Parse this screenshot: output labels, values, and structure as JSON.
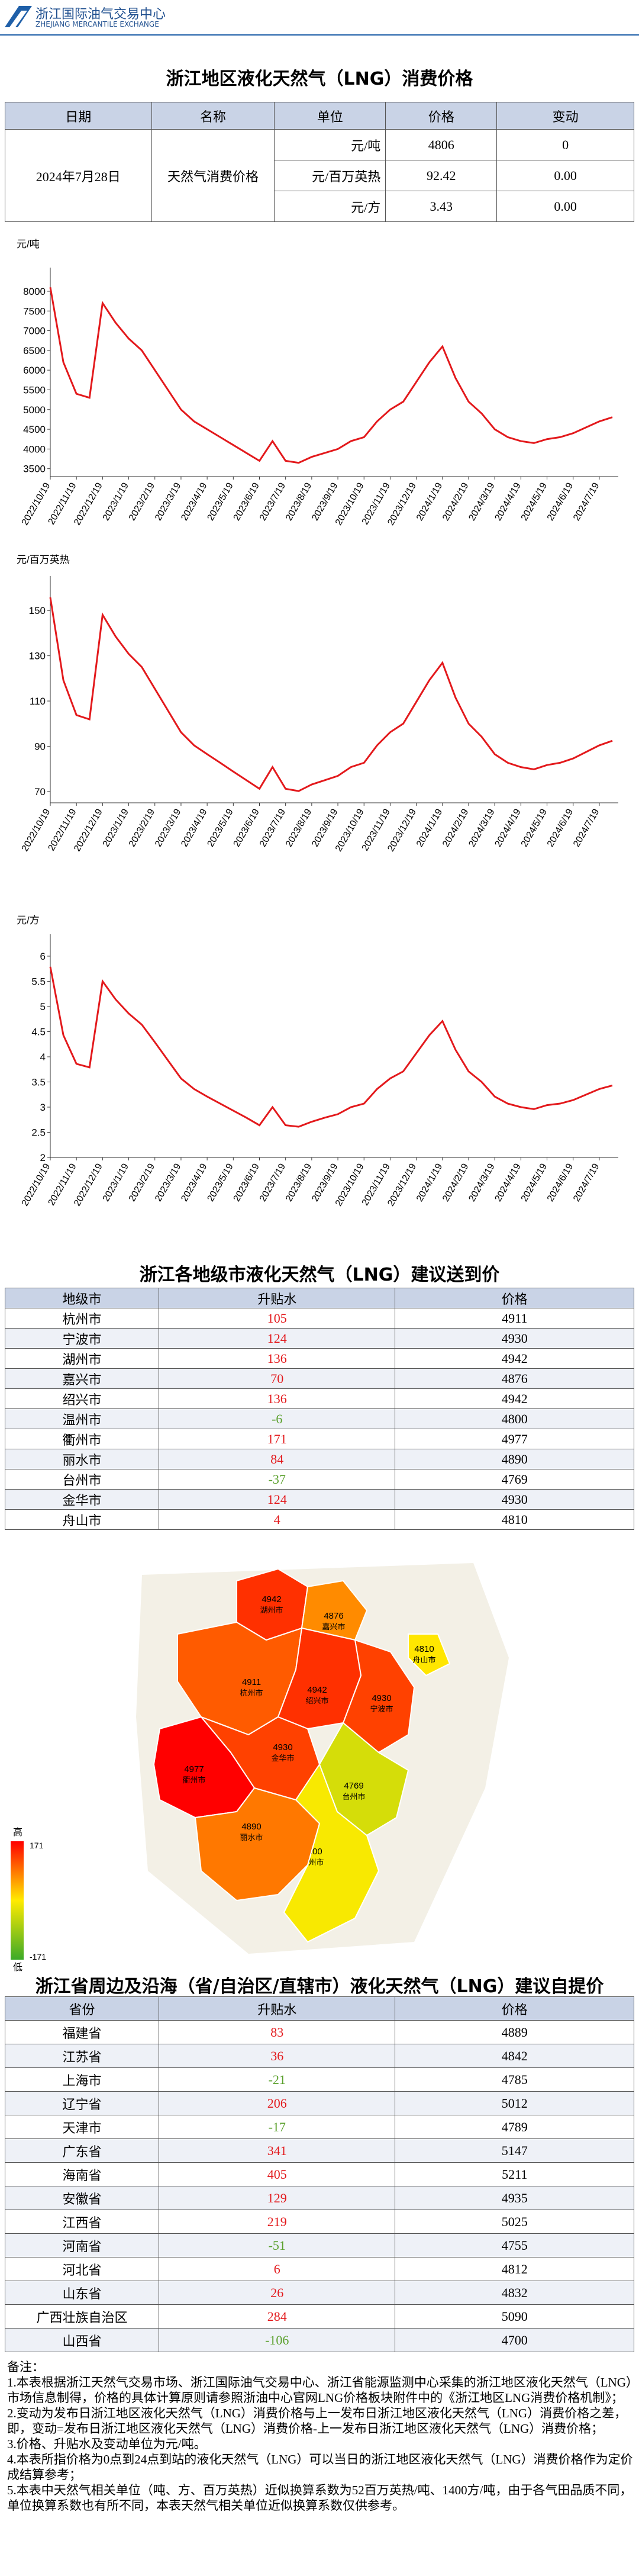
{
  "header": {
    "org": "浙江国际油气交易中心",
    "org_en": "ZHEJIANG MERCANTILE EXCHANGE"
  },
  "section1": {
    "title": "浙江地区液化天然气（LNG）消费价格",
    "columns": [
      "日期",
      "名称",
      "单位",
      "价格",
      "变动"
    ],
    "date": "2024年7月28日",
    "name": "天然气消费价格",
    "rows": [
      [
        "元/吨",
        4806,
        0
      ],
      [
        "元/百万英热",
        92.42,
        "0.00"
      ],
      [
        "元/方",
        3.43,
        "0.00"
      ]
    ]
  },
  "chart_data": [
    {
      "type": "line",
      "y_label": "元/吨",
      "color": "#e3191c",
      "ylim": [
        3300,
        8300
      ],
      "yticks": [
        3500,
        4000,
        4500,
        5000,
        5500,
        6000,
        6500,
        7000,
        7500,
        8000
      ],
      "categories": [
        "2022/10/19",
        null,
        "2022/11/19",
        null,
        "2022/12/19",
        null,
        "2023/1/19",
        null,
        "2023/2/19",
        null,
        "2023/3/19",
        null,
        "2023/4/19",
        null,
        "2023/5/19",
        null,
        "2023/6/19",
        null,
        "2023/7/19",
        null,
        "2023/8/19",
        null,
        "2023/9/19",
        null,
        "2023/10/19",
        null,
        "2023/11/19",
        null,
        "2023/12/19",
        null,
        "2024/1/19",
        null,
        "2024/2/19",
        null,
        "2024/3/19",
        null,
        "2024/4/19",
        null,
        "2024/5/19",
        null,
        "2024/6/19",
        null,
        "2024/7/19",
        null
      ],
      "values": [
        8100,
        6200,
        5400,
        5300,
        7700,
        7200,
        6800,
        6500,
        6000,
        5500,
        5000,
        4700,
        4500,
        4300,
        4100,
        3900,
        3700,
        4200,
        3700,
        3650,
        3800,
        3900,
        4000,
        4200,
        4300,
        4700,
        5000,
        5200,
        5700,
        6200,
        6600,
        5800,
        5200,
        4900,
        4500,
        4300,
        4200,
        4150,
        4250,
        4300,
        4400,
        4550,
        4700,
        4806
      ]
    },
    {
      "type": "line",
      "y_label": "元/百万英热",
      "color": "#e3191c",
      "ylim": [
        65,
        160
      ],
      "yticks": [
        70,
        90,
        110,
        130,
        150
      ],
      "categories": [
        "2022/10/19",
        null,
        "2022/11/19",
        null,
        "2022/12/19",
        null,
        "2023/1/19",
        null,
        "2023/2/19",
        null,
        "2023/3/19",
        null,
        "2023/4/19",
        null,
        "2023/5/19",
        null,
        "2023/6/19",
        null,
        "2023/7/19",
        null,
        "2023/8/19",
        null,
        "2023/9/19",
        null,
        "2023/10/19",
        null,
        "2023/11/19",
        null,
        "2023/12/19",
        null,
        "2024/1/19",
        null,
        "2024/2/19",
        null,
        "2024/3/19",
        null,
        "2024/4/19",
        null,
        "2024/5/19",
        null,
        "2024/6/19",
        null,
        "2024/7/19",
        null
      ],
      "values": [
        155.8,
        119.2,
        103.8,
        101.9,
        148.1,
        138.5,
        130.8,
        125,
        115.4,
        105.8,
        96.2,
        90.4,
        86.5,
        82.7,
        78.8,
        75,
        71.2,
        80.8,
        71.2,
        70.2,
        73.1,
        75,
        76.9,
        80.8,
        82.7,
        90.4,
        96.2,
        100,
        109.6,
        119.2,
        126.9,
        111.5,
        100,
        94.2,
        86.5,
        82.7,
        80.8,
        79.8,
        81.7,
        82.7,
        84.6,
        87.5,
        90.4,
        92.42
      ]
    },
    {
      "type": "line",
      "y_label": "元/方",
      "color": "#e3191c",
      "ylim": [
        2,
        6.2
      ],
      "yticks": [
        2,
        2.5,
        3,
        3.5,
        4,
        4.5,
        5,
        5.5,
        6
      ],
      "categories": [
        "2022/10/19",
        null,
        "2022/11/19",
        null,
        "2022/12/19",
        null,
        "2023/1/19",
        null,
        "2023/2/19",
        null,
        "2023/3/19",
        null,
        "2023/4/19",
        null,
        "2023/5/19",
        null,
        "2023/6/19",
        null,
        "2023/7/19",
        null,
        "2023/8/19",
        null,
        "2023/9/19",
        null,
        "2023/10/19",
        null,
        "2023/11/19",
        null,
        "2023/12/19",
        null,
        "2024/1/19",
        null,
        "2024/2/19",
        null,
        "2024/3/19",
        null,
        "2024/4/19",
        null,
        "2024/5/19",
        null,
        "2024/6/19",
        null,
        "2024/7/19",
        null
      ],
      "values": [
        5.79,
        4.43,
        3.86,
        3.79,
        5.5,
        5.14,
        4.86,
        4.64,
        4.29,
        3.93,
        3.57,
        3.36,
        3.21,
        3.07,
        2.93,
        2.79,
        2.64,
        3,
        2.64,
        2.61,
        2.71,
        2.79,
        2.86,
        3,
        3.07,
        3.36,
        3.57,
        3.71,
        4.07,
        4.43,
        4.71,
        4.14,
        3.71,
        3.5,
        3.21,
        3.07,
        3,
        2.96,
        3.04,
        3.07,
        3.14,
        3.25,
        3.36,
        3.43
      ]
    }
  ],
  "section2": {
    "title": "浙江各地级市液化天然气（LNG）建议送到价",
    "columns": [
      "地级市",
      "升贴水",
      "价格"
    ],
    "rows": [
      [
        "杭州市",
        105,
        4911
      ],
      [
        "宁波市",
        124,
        4930
      ],
      [
        "湖州市",
        136,
        4942
      ],
      [
        "嘉兴市",
        70,
        4876
      ],
      [
        "绍兴市",
        136,
        4942
      ],
      [
        "温州市",
        -6,
        4800
      ],
      [
        "衢州市",
        171,
        4977
      ],
      [
        "丽水市",
        84,
        4890
      ],
      [
        "台州市",
        -37,
        4769
      ],
      [
        "金华市",
        124,
        4930
      ],
      [
        "舟山市",
        4,
        4810
      ]
    ]
  },
  "map": {
    "legend": {
      "high": "高",
      "max": 171,
      "min": -171,
      "low": "低"
    }
  },
  "section3": {
    "title": "浙江省周边及沿海（省/自治区/直辖市）液化天然气（LNG）建议自提价",
    "columns": [
      "省份",
      "升贴水",
      "价格"
    ],
    "rows": [
      [
        "福建省",
        83,
        4889
      ],
      [
        "江苏省",
        36,
        4842
      ],
      [
        "上海市",
        -21,
        4785
      ],
      [
        "辽宁省",
        206,
        5012
      ],
      [
        "天津市",
        -17,
        4789
      ],
      [
        "广东省",
        341,
        5147
      ],
      [
        "海南省",
        405,
        5211
      ],
      [
        "安徽省",
        129,
        4935
      ],
      [
        "江西省",
        219,
        5025
      ],
      [
        "河南省",
        -51,
        4755
      ],
      [
        "河北省",
        6,
        4812
      ],
      [
        "山东省",
        26,
        4832
      ],
      [
        "广西壮族自治区",
        284,
        5090
      ],
      [
        "山西省",
        -106,
        4700
      ]
    ]
  },
  "notes": {
    "title": "备注：",
    "items": [
      "1.本表根据浙江天然气交易市场、浙江国际油气交易中心、浙江省能源监测中心采集的浙江地区液化天然气（LNG）市场信息制得，价格的具体计算原则请参照浙油中心官网LNG价格板块附件中的《浙江地区LNG消费价格机制》；",
      "2.变动为发布日浙江地区液化天然气（LNG）消费价格与上一发布日浙江地区液化天然气（LNG）消费价格之差，即，变动=发布日浙江地区液化天然气（LNG）消费价格-上一发布日浙江地区液化天然气（LNG）消费价格；",
      "3.价格、升贴水及变动单位为元/吨。",
      "4.本表所指价格为0点到24点到站的液化天然气（LNG）可以当日的浙江地区液化天然气（LNG）消费价格作为定价成结算参考；",
      "5.本表中天然气相关单位（吨、方、百万英热）近似换算系数为52百万英热/吨、1400方/吨，由于各气田品质不同，单位换算系数也有所不同，本表天然气相关单位近似换算系数仅供参考。"
    ]
  }
}
